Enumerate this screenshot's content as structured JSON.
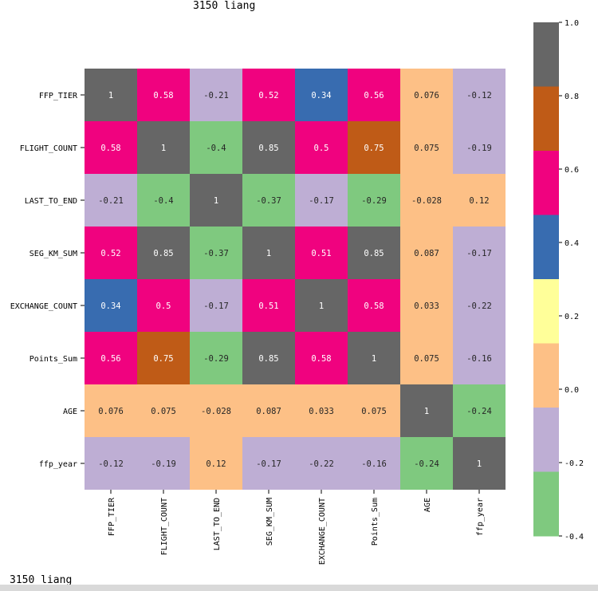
{
  "title_text": "3150 liang",
  "footer_text": "3150 liang",
  "chart_data": {
    "type": "heatmap",
    "title": "",
    "xlabel": "",
    "ylabel": "",
    "row_labels": [
      "FFP_TIER",
      "FLIGHT_COUNT",
      "LAST_TO_END",
      "SEG_KM_SUM",
      "EXCHANGE_COUNT",
      "Points_Sum",
      "AGE",
      "ffp_year"
    ],
    "col_labels": [
      "FFP_TIER",
      "FLIGHT_COUNT",
      "LAST_TO_END",
      "SEG_KM_SUM",
      "EXCHANGE_COUNT",
      "Points_Sum",
      "AGE",
      "ffp_year"
    ],
    "values": [
      [
        1,
        0.58,
        -0.21,
        0.52,
        0.34,
        0.56,
        0.076,
        -0.12
      ],
      [
        0.58,
        1,
        -0.4,
        0.85,
        0.5,
        0.75,
        0.075,
        -0.19
      ],
      [
        -0.21,
        -0.4,
        1,
        -0.37,
        -0.17,
        -0.29,
        -0.028,
        0.12
      ],
      [
        0.52,
        0.85,
        -0.37,
        1,
        0.51,
        0.85,
        0.087,
        -0.17
      ],
      [
        0.34,
        0.5,
        -0.17,
        0.51,
        1,
        0.58,
        0.033,
        -0.22
      ],
      [
        0.56,
        0.75,
        -0.29,
        0.85,
        0.58,
        1,
        0.075,
        -0.16
      ],
      [
        0.076,
        0.075,
        -0.028,
        0.087,
        0.033,
        0.075,
        1,
        -0.24
      ],
      [
        -0.12,
        -0.19,
        0.12,
        -0.17,
        -0.22,
        -0.16,
        -0.24,
        1
      ]
    ],
    "annotations": [
      [
        "1",
        "0.58",
        "-0.21",
        "0.52",
        "0.34",
        "0.56",
        "0.076",
        "-0.12"
      ],
      [
        "0.58",
        "1",
        "-0.4",
        "0.85",
        "0.5",
        "0.75",
        "0.075",
        "-0.19"
      ],
      [
        "-0.21",
        "-0.4",
        "1",
        "-0.37",
        "-0.17",
        "-0.29",
        "-0.028",
        "0.12"
      ],
      [
        "0.52",
        "0.85",
        "-0.37",
        "1",
        "0.51",
        "0.85",
        "0.087",
        "-0.17"
      ],
      [
        "0.34",
        "0.5",
        "-0.17",
        "0.51",
        "1",
        "0.58",
        "0.033",
        "-0.22"
      ],
      [
        "0.56",
        "0.75",
        "-0.29",
        "0.85",
        "0.58",
        "1",
        "0.075",
        "-0.16"
      ],
      [
        "0.076",
        "0.075",
        "-0.028",
        "0.087",
        "0.033",
        "0.075",
        "1",
        "-0.24"
      ],
      [
        "-0.12",
        "-0.19",
        "0.12",
        "-0.17",
        "-0.22",
        "-0.16",
        "-0.24",
        "1"
      ]
    ],
    "colorbar": {
      "min": -0.4,
      "max": 1.0,
      "ticks": [
        1.0,
        0.8,
        0.6,
        0.4,
        0.2,
        0.0,
        -0.2,
        -0.4
      ],
      "tick_labels": [
        "1.0",
        "0.8",
        "0.6",
        "0.4",
        "0.2",
        "0.0",
        "-0.2",
        "-0.4"
      ],
      "colormap": "Accent",
      "colors": [
        "#7fc97f",
        "#beaed4",
        "#fdc086",
        "#ffff99",
        "#386cb0",
        "#f0027f",
        "#bf5b17",
        "#666666"
      ]
    },
    "cell_text_color_on_light": "#262626",
    "cell_text_color_on_dark": "#ffffff"
  }
}
